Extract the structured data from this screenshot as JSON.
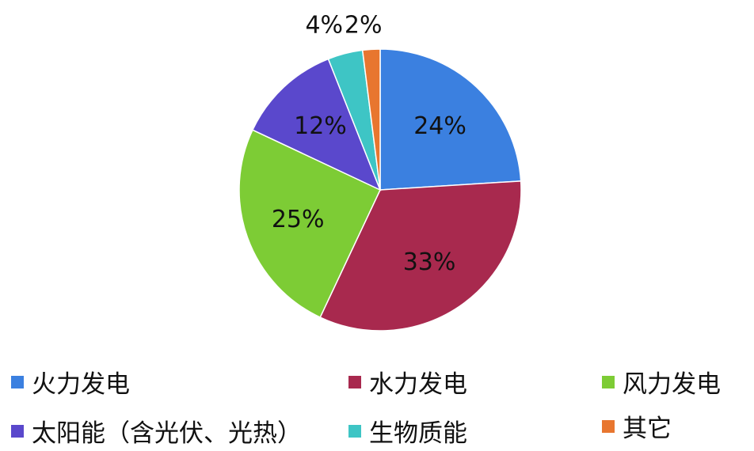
{
  "chart_data": {
    "type": "pie",
    "start": "12 o'clock",
    "direction": "clockwise",
    "legend_position": "bottom",
    "slices": [
      {
        "name": "火力发电",
        "value": 24,
        "label": "24%",
        "color": "#3B80E0"
      },
      {
        "name": "水力发电",
        "value": 33,
        "label": "33%",
        "color": "#A8294E"
      },
      {
        "name": "风力发电",
        "value": 25,
        "label": "25%",
        "color": "#7DCC35"
      },
      {
        "name": "太阳能（含光伏、光热）",
        "value": 12,
        "label": "12%",
        "color": "#5A48CC"
      },
      {
        "name": "生物质能",
        "value": 4,
        "label": "4%",
        "color": "#3EC5C5"
      },
      {
        "name": "其它",
        "value": 2,
        "label": "2%",
        "color": "#E8762F"
      }
    ]
  }
}
